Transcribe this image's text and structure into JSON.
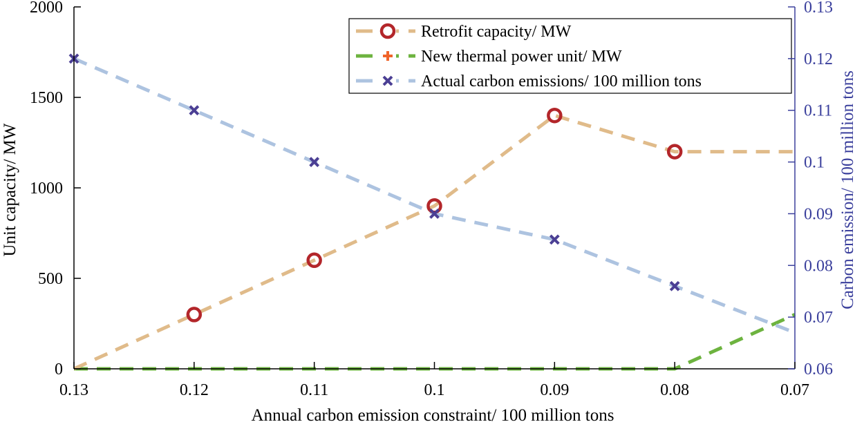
{
  "chart_data": {
    "type": "line",
    "title": "",
    "xlabel": "Annual carbon emission constraint/ 100 million tons",
    "ylabel_left": "Unit capacity/ MW",
    "ylabel_right": "Carbon emission/ 100 million tons",
    "categories": [
      "0.13",
      "0.12",
      "0.11",
      "0.1",
      "0.09",
      "0.08",
      "0.07"
    ],
    "x": [
      0.13,
      0.12,
      0.11,
      0.1,
      0.09,
      0.08,
      0.07
    ],
    "xlim": [
      0.13,
      0.07
    ],
    "ylim_left": [
      0,
      2000
    ],
    "ylim_right": [
      0.06,
      0.13
    ],
    "yticks_left": [
      "0",
      "500",
      "1000",
      "1500",
      "2000"
    ],
    "yticks_right": [
      "0.06",
      "0.07",
      "0.08",
      "0.09",
      "0.1",
      "0.11",
      "0.12",
      "0.13"
    ],
    "grid": false,
    "legend_position": "top-right",
    "series": [
      {
        "name": "Retrofit capacity/ MW",
        "axis": "left",
        "values": [
          0,
          300,
          600,
          900,
          1400,
          1200,
          1200
        ],
        "marker": "circle",
        "line_color": "#e0bb8a",
        "marker_color": "#b3262a"
      },
      {
        "name": "New thermal power unit/ MW",
        "axis": "left",
        "values": [
          0,
          0,
          0,
          0,
          0,
          0,
          300
        ],
        "marker": "plus",
        "line_color": "#6db33f",
        "marker_color": "#f0642a"
      },
      {
        "name": "Actual carbon emissions/ 100 million tons",
        "axis": "right",
        "values": [
          0.12,
          0.11,
          0.1,
          0.09,
          0.085,
          0.076,
          0.067
        ],
        "marker": "x",
        "line_color": "#adc3e0",
        "marker_color": "#4b3f94"
      }
    ],
    "colors": {
      "left_axis": "#000000",
      "right_axis": "#3a3f9c"
    }
  }
}
